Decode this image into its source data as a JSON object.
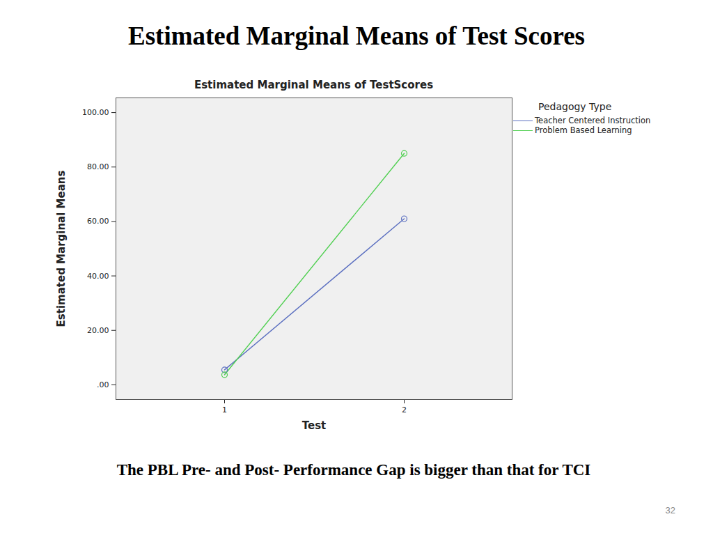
{
  "slide": {
    "title": "Estimated Marginal Means of Test Scores",
    "caption": "The PBL Pre- and Post- Performance Gap is bigger than that for TCI",
    "page_number": 32
  },
  "chart_data": {
    "type": "line",
    "title": "Estimated Marginal Means of TestScores",
    "x_label": "Test",
    "y_label": "Estimated Marginal Means",
    "legend_title": "Pedagogy Type",
    "legend": "right",
    "grid": false,
    "categories": [
      "1",
      "2"
    ],
    "series": [
      {
        "name": "Teacher Centered Instruction",
        "color": "#5b6fc0",
        "marker": "circle",
        "values": [
          5.5,
          61.0
        ]
      },
      {
        "name": "Problem Based Learning",
        "color": "#4fcf50",
        "marker": "circle",
        "values": [
          3.7,
          85.0
        ]
      }
    ],
    "ylim": [
      -5.4,
      105.4
    ],
    "yticks": [
      {
        "value": 0,
        "label": ".00"
      },
      {
        "value": 20,
        "label": "20.00"
      },
      {
        "value": 40,
        "label": "40.00"
      },
      {
        "value": 60,
        "label": "60.00"
      },
      {
        "value": 80,
        "label": "80.00"
      },
      {
        "value": 100,
        "label": "100.00"
      }
    ]
  }
}
